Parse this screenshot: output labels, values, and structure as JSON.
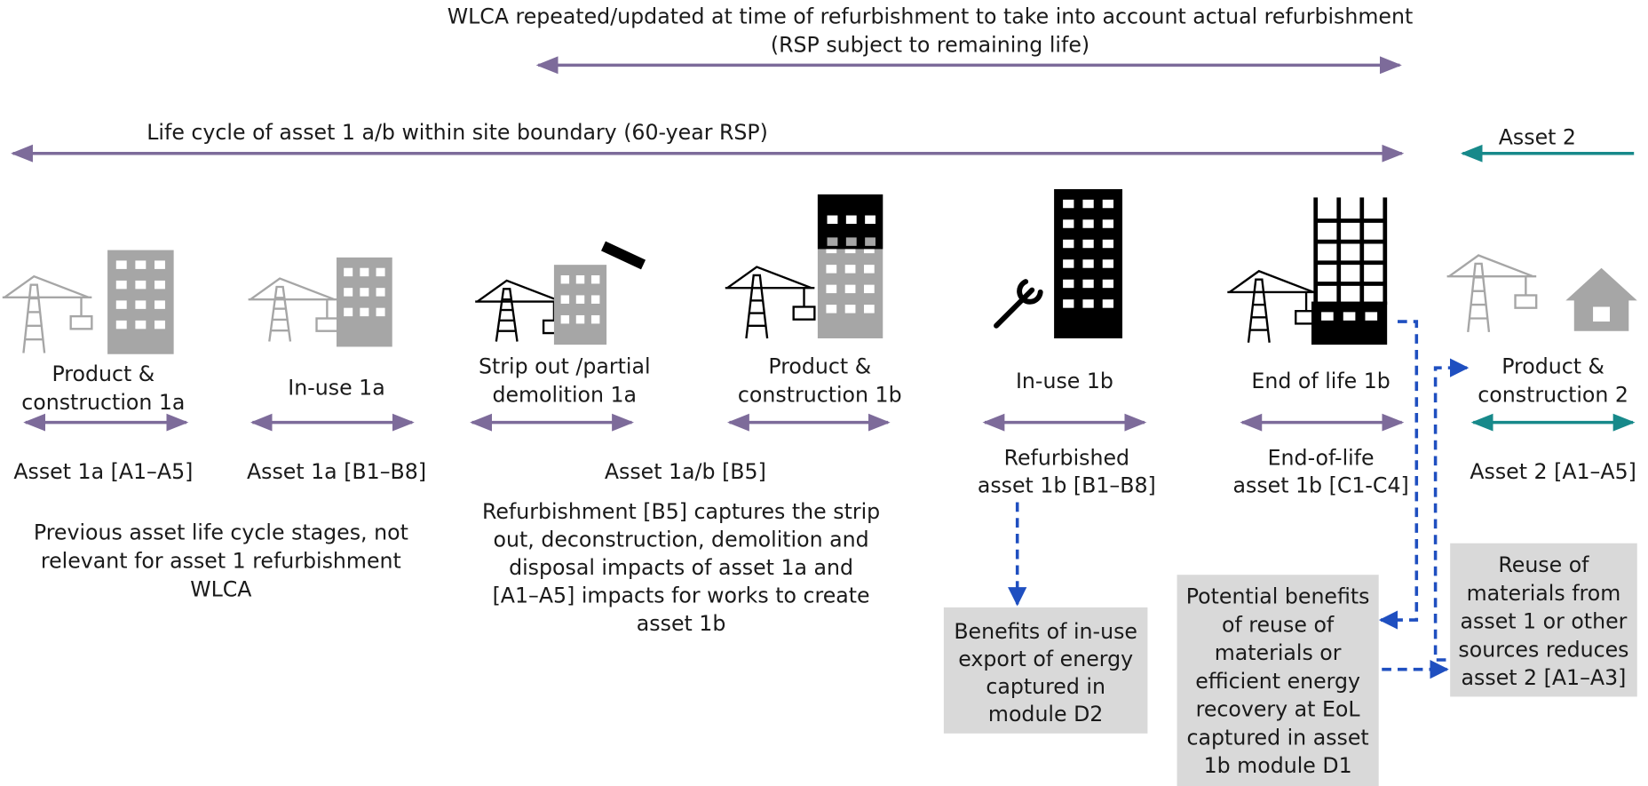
{
  "header": {
    "refurbishment_span": [
      "WLCA repeated/updated at time of refurbishment to take into account actual refurbishment",
      "(RSP subject to remaining life)"
    ],
    "life_cycle_span": "Life cycle of asset 1 a/b within site boundary (60-year RSP)",
    "asset2_span": "Asset 2"
  },
  "stages": [
    {
      "label": [
        "Product &",
        "construction 1a"
      ]
    },
    {
      "label": [
        "In-use 1a"
      ]
    },
    {
      "label": [
        "Strip out /partial",
        "demolition 1a"
      ]
    },
    {
      "label": [
        "Product &",
        "construction 1b"
      ]
    },
    {
      "label": [
        "In-use 1b"
      ]
    },
    {
      "label": [
        "End of life 1b"
      ]
    },
    {
      "label": [
        "Product &",
        "construction 2"
      ]
    }
  ],
  "asset_labels": [
    [
      "Asset 1a [A1–A5]"
    ],
    [
      "Asset 1a [B1–B8]"
    ],
    [
      "Asset 1a/b [B5]"
    ],
    [
      "Refurbished",
      "asset 1b [B1–B8]"
    ],
    [
      "End-of-life",
      "asset 1b [C1-C4]"
    ],
    [
      "Asset 2 [A1–A5]"
    ]
  ],
  "notes": [
    [
      "Previous asset life cycle stages, not",
      "relevant for asset 1 refurbishment",
      "WLCA"
    ],
    [
      "Refurbishment [B5] captures the strip",
      "out, deconstruction, demolition and",
      "disposal impacts of asset 1a and",
      "[A1–A5] impacts for works to create",
      "asset 1b"
    ]
  ],
  "boxes": [
    [
      "Benefits of in-use",
      "export of energy",
      "captured in",
      "module D2"
    ],
    [
      "Potential benefits",
      "of reuse of",
      "materials or",
      "efficient energy",
      "recovery at EoL",
      "captured in asset",
      "1b module D1"
    ],
    [
      "Reuse of",
      "materials from",
      "asset 1 or other",
      "sources reduces",
      "asset 2 [A1–A3]"
    ]
  ]
}
